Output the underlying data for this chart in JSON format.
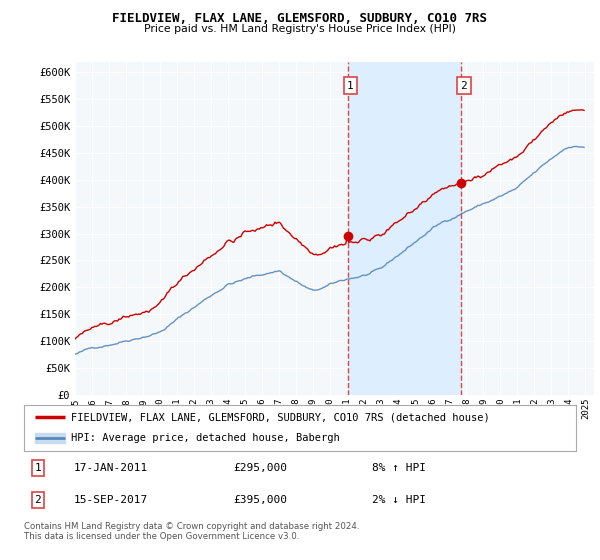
{
  "title": "FIELDVIEW, FLAX LANE, GLEMSFORD, SUDBURY, CO10 7RS",
  "subtitle": "Price paid vs. HM Land Registry's House Price Index (HPI)",
  "ylim": [
    0,
    620000
  ],
  "yticks": [
    0,
    50000,
    100000,
    150000,
    200000,
    250000,
    300000,
    350000,
    400000,
    450000,
    500000,
    550000,
    600000
  ],
  "ytick_labels": [
    "£0",
    "£50K",
    "£100K",
    "£150K",
    "£200K",
    "£250K",
    "£300K",
    "£350K",
    "£400K",
    "£450K",
    "£500K",
    "£550K",
    "£600K"
  ],
  "hpi_color": "#c8dcf0",
  "hpi_line_color": "#5588bb",
  "price_color": "#cc0000",
  "vline_color": "#dd4444",
  "marker1_year": 2011.04,
  "marker2_year": 2017.71,
  "marker1_price": 295000,
  "marker2_price": 395000,
  "legend_label_red": "FIELDVIEW, FLAX LANE, GLEMSFORD, SUDBURY, CO10 7RS (detached house)",
  "legend_label_blue": "HPI: Average price, detached house, Babergh",
  "background_color": "#ffffff",
  "plot_bg_color": "#f5f8fa",
  "shade_between_sales": true,
  "shade_color": "#ddeeff",
  "footer": "Contains HM Land Registry data © Crown copyright and database right 2024.\nThis data is licensed under the Open Government Licence v3.0."
}
